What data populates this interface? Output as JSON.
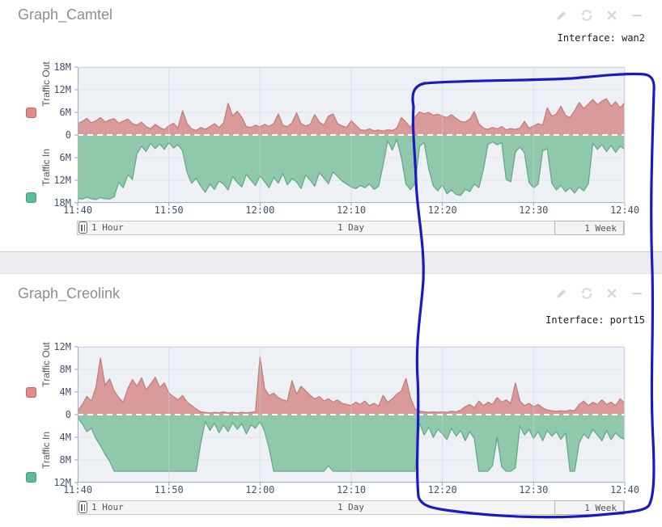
{
  "panels": [
    {
      "title": "Graph_Camtel",
      "interface_label": "Interface: wan2",
      "icons": [
        "edit-icon",
        "refresh-icon",
        "close-icon",
        "minimize-icon"
      ],
      "time_bar": {
        "hour": "1 Hour",
        "day": "1 Day",
        "week": "1 Week"
      }
    },
    {
      "title": "Graph_Creolink",
      "interface_label": "Interface: port15",
      "icons": [
        "edit-icon",
        "refresh-icon",
        "close-icon",
        "minimize-icon"
      ],
      "time_bar": {
        "hour": "1 Hour",
        "day": "1 Day",
        "week": "1 Week"
      }
    }
  ],
  "annotation": {
    "shape": "hand-drawn-loop",
    "color": "#1a1ac2"
  },
  "chart_data": [
    {
      "type": "area",
      "title": "Graph_Camtel",
      "interface": "wan2",
      "plot_bg": "#edf0f4",
      "grid": true,
      "legend_position": "left",
      "x_ticks": [
        "11:40",
        "11:50",
        "12:00",
        "12:10",
        "12:20",
        "12:30",
        "12:40"
      ],
      "y_ticks": [
        "18M",
        "12M",
        "6M",
        "0",
        "6M",
        "12M",
        "18M"
      ],
      "ylim_m": 18,
      "x_range_min": 60,
      "sample_step_min": 0.5,
      "zero_line": {
        "color": "#ffffff",
        "style": "dashed"
      },
      "series": [
        {
          "name": "Traffic Out",
          "direction": "up",
          "unit": "M",
          "fill": "#db9a9a",
          "stroke": "#c07e7e",
          "values": [
            3.0,
            3.6,
            4.4,
            3.2,
            3.8,
            4.6,
            3.4,
            4.0,
            4.3,
            3.1,
            3.7,
            4.2,
            3.0,
            2.6,
            3.4,
            2.2,
            1.6,
            2.8,
            2.0,
            1.4,
            2.4,
            3.1,
            1.8,
            6.4,
            3.0,
            1.6,
            1.2,
            2.0,
            1.5,
            2.2,
            3.0,
            2.0,
            3.2,
            8.4,
            5.0,
            6.3,
            4.7,
            2.2,
            2.0,
            2.6,
            2.2,
            2.8,
            2.3,
            3.0,
            5.6,
            2.6,
            2.2,
            3.2,
            5.9,
            3.0,
            2.4,
            2.8,
            5.4,
            3.4,
            2.6,
            5.0,
            5.6,
            3.0,
            2.4,
            2.0,
            3.8,
            2.6,
            1.4,
            1.2,
            1.6,
            1.1,
            1.3,
            1.0,
            1.4,
            1.2,
            1.8,
            4.6,
            3.4,
            2.0,
            4.8,
            6.1,
            5.6,
            6.0,
            5.2,
            5.5,
            5.0,
            4.6,
            5.4,
            4.4,
            3.6,
            3.4,
            4.2,
            6.2,
            3.0,
            1.8,
            1.5,
            2.0,
            1.6,
            2.2,
            1.4,
            1.7,
            1.5,
            1.8,
            3.6,
            1.8,
            2.4,
            3.0,
            2.6,
            7.2,
            5.0,
            5.6,
            7.6,
            5.2,
            4.6,
            6.4,
            8.6,
            7.0,
            8.2,
            9.4,
            8.0,
            9.0,
            9.6,
            7.6,
            8.8,
            7.2,
            8.6
          ]
        },
        {
          "name": "Traffic In",
          "direction": "down",
          "unit": "M",
          "fill": "#90c8ac",
          "stroke": "#68a98b",
          "values": [
            16.8,
            17.0,
            16.5,
            16.9,
            17.1,
            16.6,
            16.9,
            17.0,
            16.4,
            12.5,
            14.0,
            10.5,
            11.8,
            5.0,
            3.0,
            4.4,
            2.2,
            3.6,
            2.4,
            3.8,
            2.0,
            3.4,
            2.6,
            4.2,
            10.0,
            12.8,
            11.5,
            13.6,
            15.2,
            13.0,
            14.4,
            12.2,
            13.0,
            14.6,
            11.0,
            12.6,
            13.8,
            10.4,
            12.0,
            13.4,
            10.8,
            12.4,
            14.0,
            11.2,
            12.8,
            10.2,
            13.2,
            11.6,
            12.4,
            14.2,
            10.6,
            12.0,
            13.6,
            10.0,
            11.4,
            12.9,
            9.8,
            11.0,
            12.2,
            13.0,
            13.8,
            14.2,
            13.4,
            14.0,
            13.0,
            14.4,
            13.6,
            8.0,
            1.5,
            4.0,
            1.2,
            6.0,
            13.0,
            14.5,
            12.8,
            3.0,
            2.0,
            9.0,
            13.5,
            14.8,
            13.2,
            15.6,
            14.6,
            15.8,
            16.0,
            14.4,
            15.0,
            13.0,
            14.0,
            9.0,
            2.5,
            1.8,
            2.6,
            2.0,
            11.8,
            12.4,
            4.5,
            3.2,
            4.8,
            12.6,
            14.0,
            13.0,
            4.2,
            3.6,
            12.8,
            14.6,
            13.4,
            15.0,
            14.0,
            15.4,
            13.8,
            14.8,
            13.0,
            2.2,
            3.8,
            2.6,
            4.4,
            2.8,
            4.6,
            3.0,
            3.8
          ]
        }
      ]
    },
    {
      "type": "area",
      "title": "Graph_Creolink",
      "interface": "port15",
      "plot_bg": "#edf0f4",
      "grid": true,
      "legend_position": "left",
      "x_ticks": [
        "11:40",
        "11:50",
        "12:00",
        "12:10",
        "12:20",
        "12:30",
        "12:40"
      ],
      "y_ticks": [
        "12M",
        "8M",
        "4M",
        "0",
        "4M",
        "8M",
        "12M"
      ],
      "ylim_m": 12,
      "x_range_min": 60,
      "sample_step_min": 0.5,
      "zero_line": {
        "color": "#ffffff",
        "style": "dashed"
      },
      "series": [
        {
          "name": "Traffic Out",
          "direction": "up",
          "unit": "M",
          "fill": "#db9a9a",
          "stroke": "#c07e7e",
          "values": [
            0.6,
            1.8,
            3.2,
            2.4,
            4.8,
            10.0,
            5.2,
            6.3,
            4.2,
            3.0,
            2.2,
            4.6,
            6.2,
            5.0,
            6.5,
            4.4,
            5.4,
            6.6,
            4.8,
            5.6,
            3.8,
            3.2,
            2.6,
            3.4,
            2.2,
            1.6,
            1.0,
            0.5,
            0.4,
            0.3,
            0.4,
            0.3,
            0.5,
            0.3,
            0.4,
            0.3,
            0.4,
            0.3,
            0.4,
            0.5,
            10.2,
            4.6,
            3.4,
            3.8,
            3.0,
            2.6,
            2.4,
            6.0,
            3.6,
            5.0,
            4.2,
            3.4,
            2.8,
            3.2,
            2.4,
            2.8,
            2.2,
            2.6,
            2.0,
            1.8,
            1.6,
            2.2,
            1.8,
            2.4,
            1.6,
            2.0,
            1.5,
            3.4,
            2.2,
            2.8,
            3.6,
            4.2,
            6.4,
            3.0,
            1.0,
            0.6,
            0.5,
            0.4,
            0.5,
            0.4,
            0.5,
            0.4,
            0.6,
            0.5,
            0.8,
            1.4,
            1.8,
            1.2,
            2.4,
            1.6,
            2.2,
            1.8,
            3.0,
            2.2,
            2.6,
            2.0,
            5.6,
            2.4,
            1.6,
            2.0,
            1.4,
            1.8,
            1.2,
            0.8,
            0.7,
            0.6,
            0.7,
            0.6,
            0.8,
            0.7,
            1.8,
            2.4,
            1.6,
            2.2,
            1.8,
            2.6,
            1.8,
            2.2,
            1.6,
            2.8,
            2.0
          ]
        },
        {
          "name": "Traffic In",
          "direction": "down",
          "unit": "M",
          "fill": "#90c8ac",
          "stroke": "#68a98b",
          "values": [
            0.5,
            1.6,
            3.0,
            2.4,
            4.2,
            5.5,
            7.0,
            8.2,
            10.0,
            10.0,
            10.0,
            10.0,
            10.0,
            10.0,
            10.0,
            10.0,
            10.0,
            10.0,
            10.0,
            10.0,
            10.0,
            10.0,
            10.0,
            10.0,
            10.0,
            10.0,
            10.0,
            5.0,
            1.2,
            2.8,
            1.5,
            3.2,
            1.8,
            3.0,
            1.4,
            2.6,
            1.6,
            3.4,
            1.8,
            2.4,
            1.2,
            3.0,
            6.0,
            10.0,
            10.0,
            10.0,
            10.0,
            10.0,
            10.0,
            10.0,
            10.0,
            10.0,
            10.0,
            10.0,
            10.0,
            9.0,
            10.0,
            10.0,
            10.0,
            10.0,
            10.0,
            10.0,
            10.0,
            10.0,
            10.0,
            10.0,
            10.0,
            10.0,
            10.0,
            10.0,
            10.0,
            10.0,
            10.0,
            10.0,
            10.0,
            1.5,
            3.6,
            2.2,
            4.0,
            2.6,
            3.4,
            4.4,
            2.4,
            3.8,
            2.8,
            4.6,
            3.0,
            4.2,
            10.0,
            10.0,
            10.0,
            9.0,
            4.0,
            9.2,
            10.0,
            10.0,
            9.4,
            2.0,
            3.6,
            2.6,
            4.2,
            3.0,
            4.6,
            2.8,
            3.8,
            3.0,
            4.4,
            3.2,
            10.0,
            10.0,
            5.0,
            3.4,
            4.2,
            2.6,
            3.6,
            4.6,
            2.8,
            4.4,
            3.2,
            4.0,
            4.4
          ]
        }
      ]
    }
  ]
}
